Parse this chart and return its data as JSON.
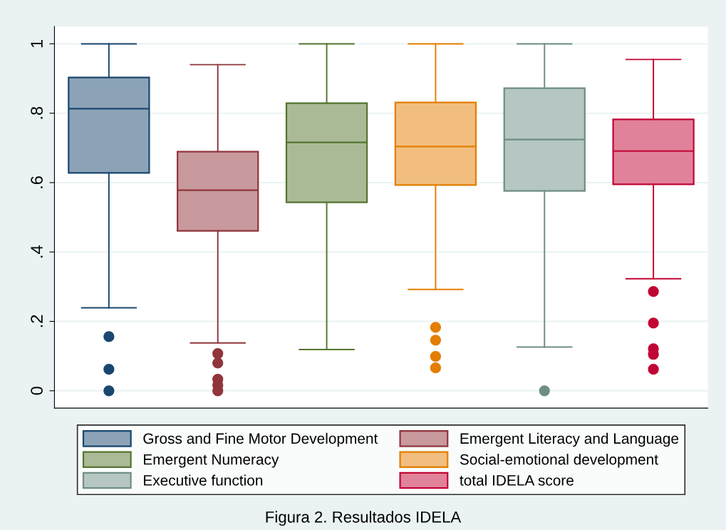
{
  "chart_data": {
    "type": "box",
    "title": "Figura 2. Resultados IDELA",
    "categories": [
      null,
      null,
      null,
      null,
      null,
      null
    ],
    "ylim": [
      -0.05,
      1.05
    ],
    "yticks": [
      {
        "value": 0,
        "label": "0"
      },
      {
        "value": 0.2,
        "label": ".2"
      },
      {
        "value": 0.4,
        "label": ".4"
      },
      {
        "value": 0.6,
        "label": ".6"
      },
      {
        "value": 0.8,
        "label": ".8"
      },
      {
        "value": 1,
        "label": "1"
      }
    ],
    "grid": "y",
    "legend": "bottom",
    "marker": "circle",
    "series": [
      {
        "name": "Gross and Fine Motor Development",
        "color": "#1a476f",
        "boxes": [
          {
            "low": 0.239,
            "q1": 0.628,
            "median": 0.813,
            "q3": 0.903,
            "high": 1.0,
            "outliers": [
              0.156,
              0.062,
              0.0
            ]
          },
          null,
          null,
          null,
          null,
          null
        ]
      },
      {
        "name": "Emergent Literacy and Language",
        "color": "#90353b",
        "boxes": [
          null,
          {
            "low": 0.138,
            "q1": 0.461,
            "median": 0.578,
            "q3": 0.689,
            "high": 0.94,
            "outliers": [
              0.107,
              0.08,
              0.033,
              0.016,
              0.0
            ]
          },
          null,
          null,
          null,
          null
        ]
      },
      {
        "name": "Emergent Numeracy",
        "color": "#55752f",
        "boxes": [
          null,
          null,
          {
            "low": 0.119,
            "q1": 0.543,
            "median": 0.716,
            "q3": 0.829,
            "high": 1.0
          },
          null,
          null,
          null
        ]
      },
      {
        "name": "Social-emotional development",
        "color": "#e37e00",
        "boxes": [
          null,
          null,
          null,
          {
            "low": 0.292,
            "q1": 0.593,
            "median": 0.704,
            "q3": 0.831,
            "high": 1.0,
            "outliers": [
              0.183,
              0.146,
              0.099,
              0.066
            ]
          },
          null,
          null
        ]
      },
      {
        "name": "Executive function",
        "color": "#6e8e84",
        "boxes": [
          null,
          null,
          null,
          null,
          {
            "low": 0.126,
            "q1": 0.576,
            "median": 0.724,
            "q3": 0.872,
            "high": 1.0,
            "outliers": [
              0.0
            ]
          },
          null
        ]
      },
      {
        "name": "total IDELA score",
        "color": "#c10534",
        "boxes": [
          null,
          null,
          null,
          null,
          null,
          {
            "low": 0.323,
            "q1": 0.595,
            "median": 0.691,
            "q3": 0.782,
            "high": 0.955,
            "outliers": [
              0.286,
              0.195,
              0.121,
              0.105,
              0.062
            ]
          }
        ]
      }
    ]
  }
}
